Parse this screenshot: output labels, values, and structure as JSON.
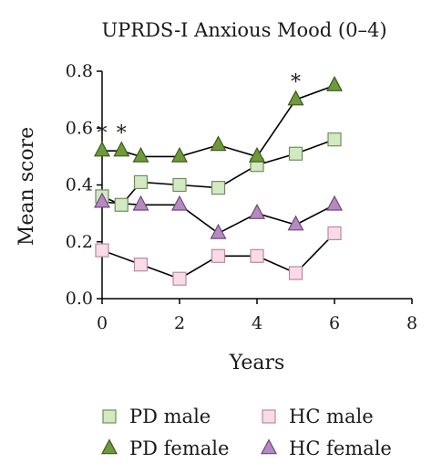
{
  "chart_data": {
    "type": "line",
    "title": "UPRDS-I Anxious Mood (0–4)",
    "xlabel": "Years",
    "ylabel": "Mean score",
    "xlim": [
      0,
      8
    ],
    "ylim": [
      0,
      0.8
    ],
    "xticks": [
      "0",
      "2",
      "4",
      "6",
      "8"
    ],
    "yticks": [
      "0.0",
      "0.2",
      "0.4",
      "0.6",
      "0.8"
    ],
    "grid": false,
    "legend_placement": "bottom",
    "series": [
      {
        "name": "PD male",
        "marker": "square",
        "fill": "#d5e8c4",
        "stroke": "#6f8f5a",
        "x": [
          0,
          0.5,
          1,
          2,
          3,
          4,
          5,
          6
        ],
        "y": [
          0.36,
          0.33,
          0.41,
          0.4,
          0.39,
          0.47,
          0.51,
          0.56
        ]
      },
      {
        "name": "PD female",
        "marker": "triangle",
        "fill": "#6e9a3a",
        "stroke": "#3d5a1f",
        "x": [
          0,
          0.5,
          1,
          2,
          3,
          4,
          5,
          6
        ],
        "y": [
          0.52,
          0.52,
          0.5,
          0.5,
          0.54,
          0.5,
          0.7,
          0.75
        ]
      },
      {
        "name": "HC male",
        "marker": "square",
        "fill": "#f8dbe6",
        "stroke": "#b98aa0",
        "x": [
          0,
          1,
          2,
          3,
          4,
          5,
          6
        ],
        "y": [
          0.17,
          0.12,
          0.07,
          0.15,
          0.15,
          0.09,
          0.23
        ]
      },
      {
        "name": "HC female",
        "marker": "triangle",
        "fill": "#b48ac0",
        "stroke": "#6e4a7c",
        "x": [
          0,
          1,
          2,
          3,
          4,
          5,
          6
        ],
        "y": [
          0.34,
          0.33,
          0.33,
          0.23,
          0.3,
          0.26,
          0.33
        ]
      }
    ],
    "annotations": [
      {
        "text": "*",
        "x": 0,
        "y": 0.52
      },
      {
        "text": "*",
        "x": 0.5,
        "y": 0.52
      },
      {
        "text": "*",
        "x": 5,
        "y": 0.7
      }
    ]
  }
}
